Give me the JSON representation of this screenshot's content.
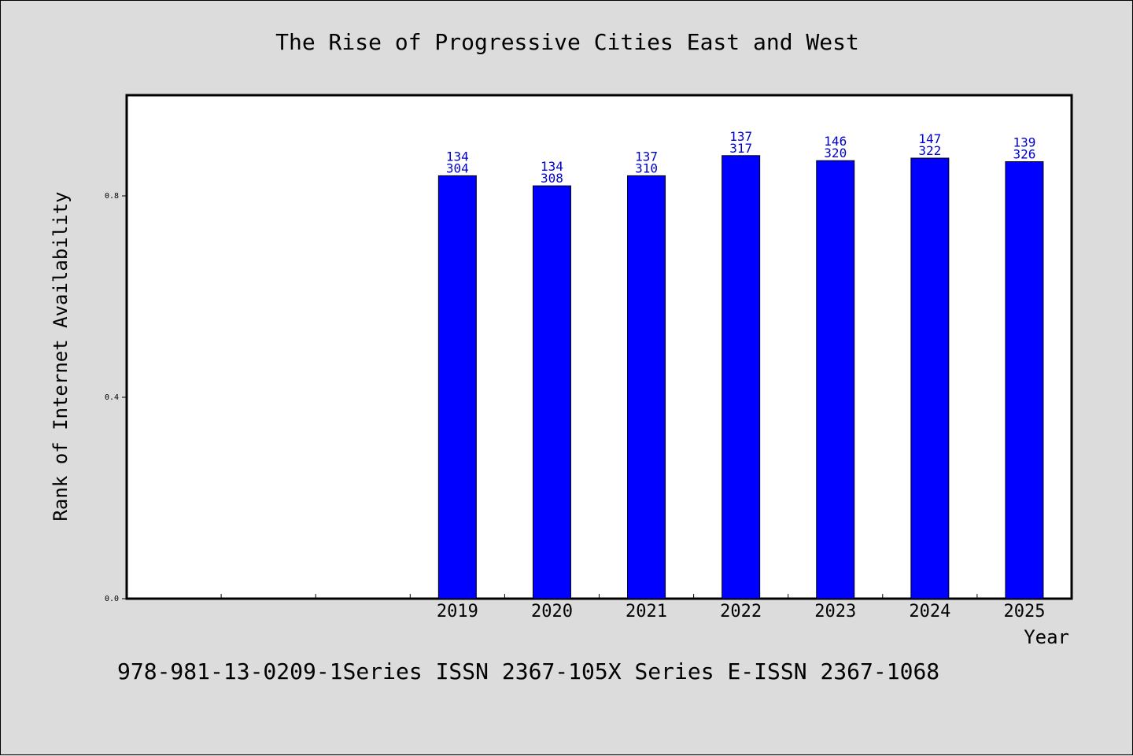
{
  "chart_data": {
    "type": "bar",
    "title": "The Rise of Progressive Cities East and West",
    "xlabel": "Year",
    "ylabel": "Rank of Internet Availability",
    "y_ticks": [
      "0.0",
      "0.4",
      "0.8"
    ],
    "ylim": [
      0.0,
      1.0
    ],
    "categories": [
      "2019",
      "2020",
      "2021",
      "2022",
      "2023",
      "2024",
      "2025"
    ],
    "values": [
      0.84,
      0.82,
      0.84,
      0.88,
      0.87,
      0.875,
      0.868
    ],
    "label_top": [
      "134",
      "134",
      "137",
      "137",
      "146",
      "147",
      "139"
    ],
    "label_bottom": [
      "304",
      "308",
      "310",
      "317",
      "320",
      "322",
      "326"
    ],
    "grid": false,
    "bar_color": "#0000ff",
    "label_color": "#0000cc"
  },
  "footer": "978-981-13-0209-1Series ISSN 2367-105X Series E-ISSN 2367-1068"
}
